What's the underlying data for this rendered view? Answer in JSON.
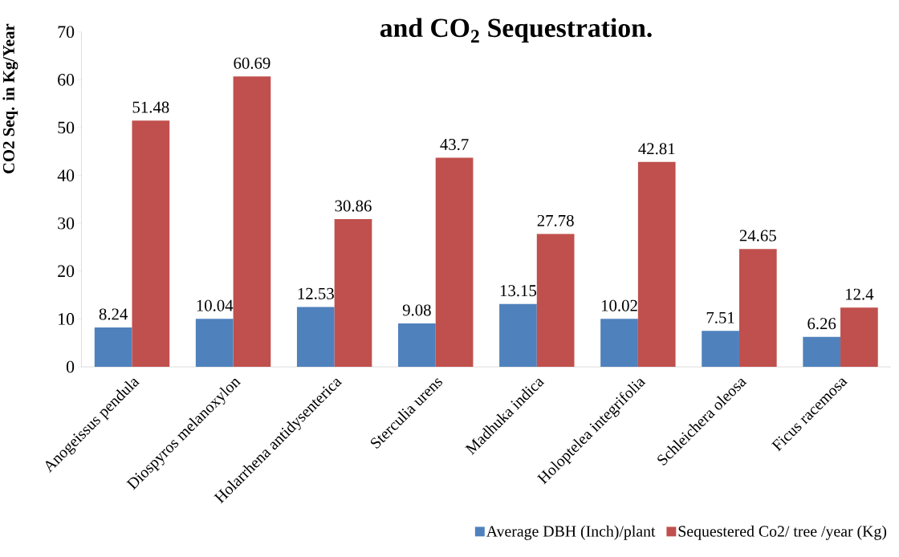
{
  "chart_data": {
    "type": "bar",
    "title": "and CO$_{2}$ Sequestration.",
    "ylabel": "CO2 Seq. in Kg/Year",
    "categories": [
      "Anogeissus pendula",
      "Diospyros melanoxylon",
      "Holarrhena antidysenterica",
      "Sterculia urens",
      "Madhuka indica",
      "Holoptelea integrifolia",
      "Schleichera oleosa",
      "Ficus racemosa"
    ],
    "series": [
      {
        "name": "Average  DBH (Inch)/plant",
        "color": "#4f81bd",
        "values": [
          8.24,
          10.04,
          12.53,
          9.08,
          13.15,
          10.02,
          7.51,
          6.26
        ]
      },
      {
        "name": "Sequestered Co2/ tree /year (Kg)",
        "color": "#c0504d",
        "values": [
          51.48,
          60.69,
          30.86,
          43.7,
          27.78,
          42.81,
          24.65,
          12.4
        ]
      }
    ],
    "ylim": [
      0,
      70
    ],
    "yticks": [
      0,
      10,
      20,
      30,
      40,
      50,
      60,
      70
    ],
    "data_labels": true,
    "legend": "bottom",
    "grid": false
  }
}
